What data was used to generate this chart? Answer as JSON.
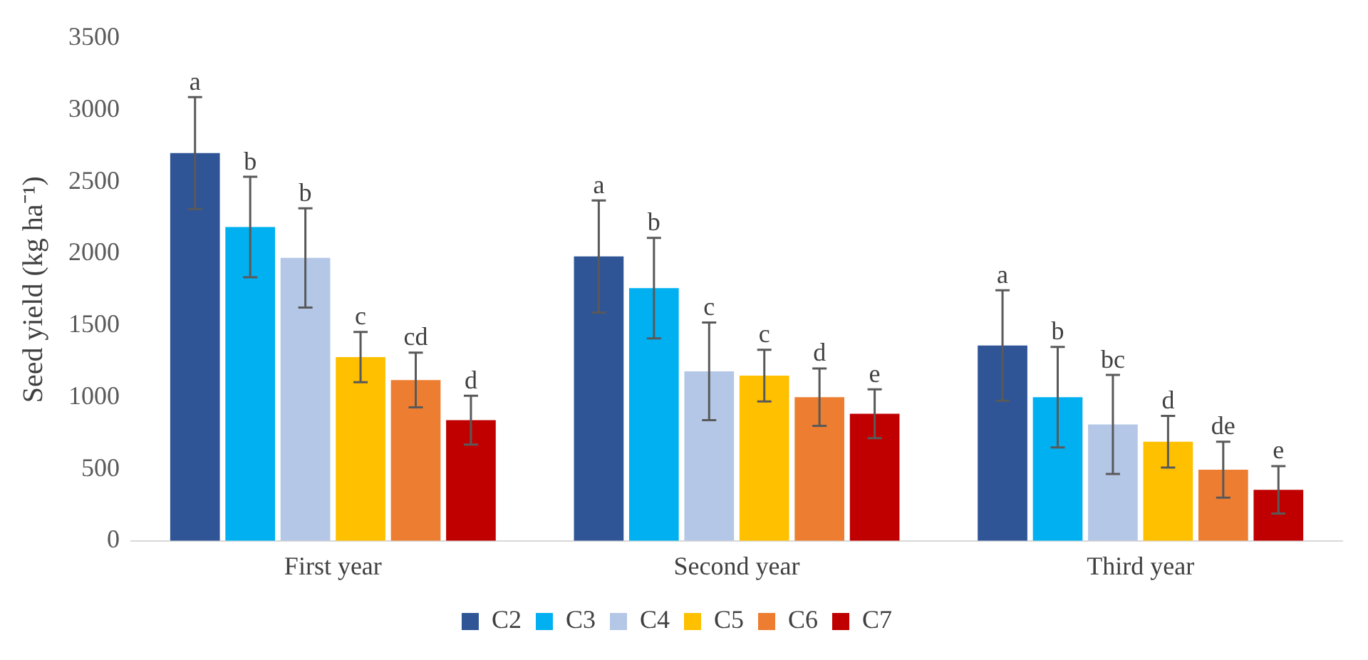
{
  "chart_data": {
    "type": "bar",
    "ylabel": "Seed yield (kg ha⁻¹)",
    "categories": [
      "First year",
      "Second year",
      "Third year"
    ],
    "ylim": [
      0,
      3500
    ],
    "yticks": [
      0,
      500,
      1000,
      1500,
      2000,
      2500,
      3000,
      3500
    ],
    "grid": false,
    "legend": "bottom",
    "series": [
      {
        "name": "C2",
        "color": "#2f5597",
        "values": [
          2700,
          1980,
          1360
        ],
        "errors": [
          390,
          390,
          385
        ],
        "value_labels": [
          "a",
          "a",
          "a"
        ]
      },
      {
        "name": "C3",
        "color": "#00b0f0",
        "values": [
          2185,
          1760,
          1000
        ],
        "errors": [
          350,
          350,
          350
        ],
        "value_labels": [
          "b",
          "b",
          "b"
        ]
      },
      {
        "name": "C4",
        "color": "#b4c7e7",
        "values": [
          1970,
          1180,
          810
        ],
        "errors": [
          345,
          340,
          345
        ],
        "value_labels": [
          "b",
          "c",
          "bc"
        ]
      },
      {
        "name": "C5",
        "color": "#ffc000",
        "values": [
          1280,
          1150,
          690
        ],
        "errors": [
          175,
          180,
          180
        ],
        "value_labels": [
          "c",
          "c",
          "d"
        ]
      },
      {
        "name": "C6",
        "color": "#ed7d31",
        "values": [
          1120,
          1000,
          495
        ],
        "errors": [
          190,
          200,
          195
        ],
        "value_labels": [
          "cd",
          "d",
          "de"
        ]
      },
      {
        "name": "C7",
        "color": "#c00000",
        "values": [
          840,
          885,
          355
        ],
        "errors": [
          170,
          170,
          165
        ],
        "value_labels": [
          "d",
          "e",
          "e"
        ]
      }
    ]
  }
}
